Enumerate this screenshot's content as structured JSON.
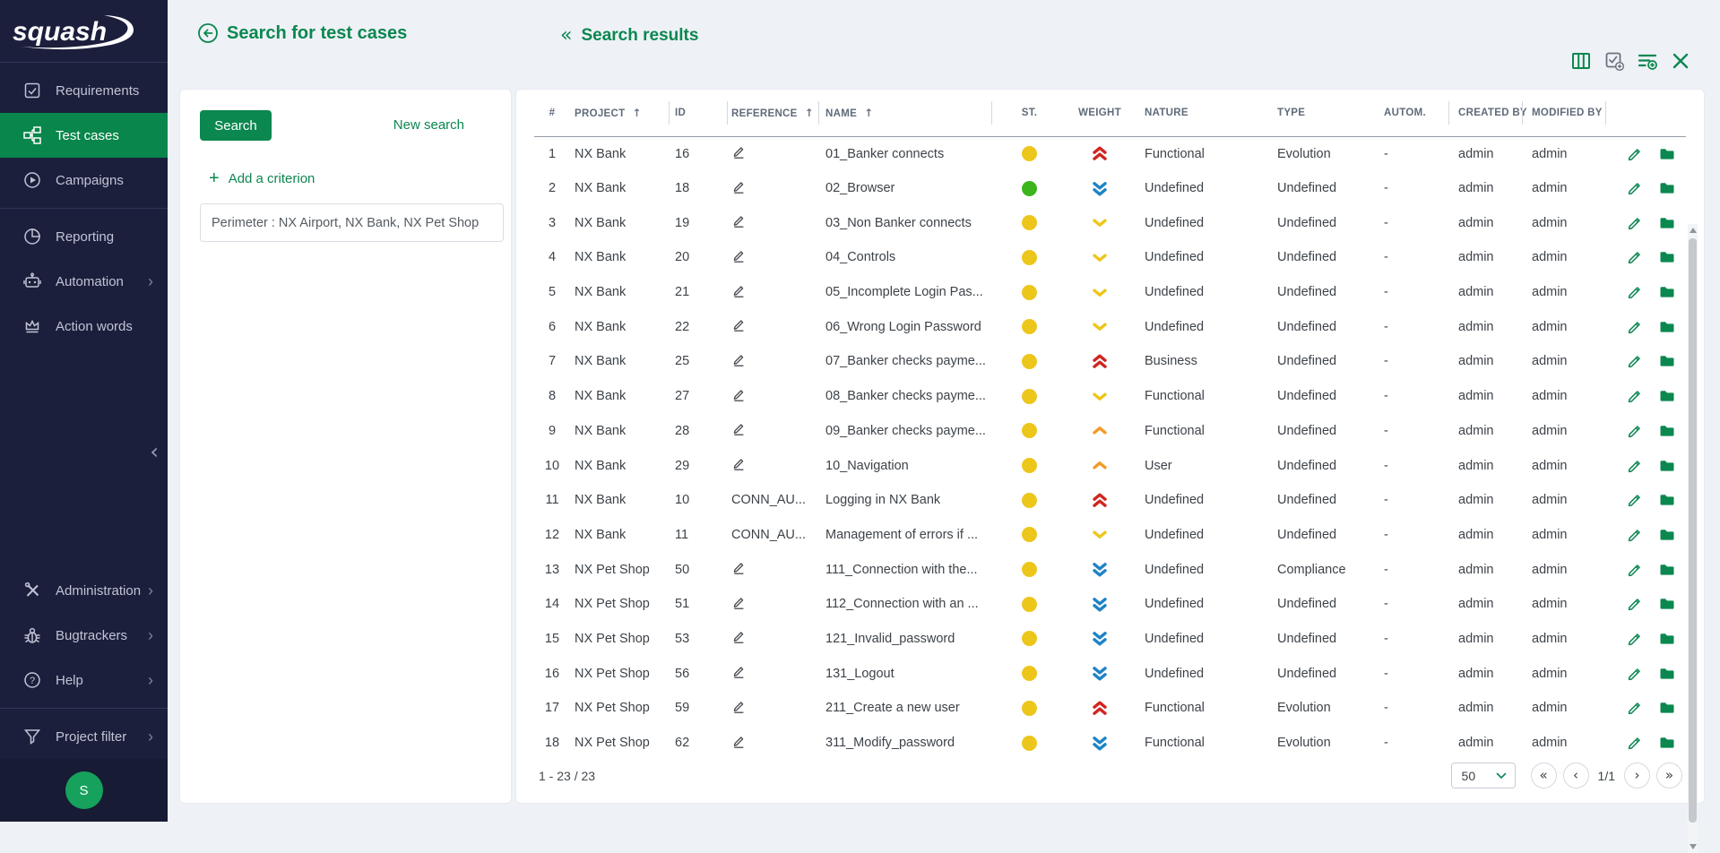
{
  "colors": {
    "accent": "#0b8750",
    "sidebar_bg": "#1b1f3c",
    "active_item_bg": "#09864b",
    "avatar_bg": "#16a15c",
    "status": {
      "yellow": "#edc61c",
      "green": "#3cb51c"
    },
    "weight": {
      "very-high": "#d02620",
      "high": "#f09b28",
      "low": "#edc61c",
      "very-low": "#1e83c5"
    }
  },
  "sidebar": {
    "logo": "squash",
    "items": [
      {
        "label": "Requirements",
        "icon": "checkbox-icon"
      },
      {
        "label": "Test cases",
        "icon": "tree-icon"
      },
      {
        "label": "Campaigns",
        "icon": "play-circle-icon"
      },
      {
        "label": "Reporting",
        "icon": "pie-icon"
      },
      {
        "label": "Automation",
        "icon": "robot-icon"
      },
      {
        "label": "Action words",
        "icon": "crown-icon"
      }
    ],
    "bottom_items": [
      {
        "label": "Administration",
        "icon": "tools-icon"
      },
      {
        "label": "Bugtrackers",
        "icon": "bug-icon"
      },
      {
        "label": "Help",
        "icon": "help-icon"
      },
      {
        "label": "Project filter",
        "icon": "funnel-icon"
      }
    ],
    "avatar": "S"
  },
  "header": {
    "title": "Search for test cases",
    "results_title": "Search results",
    "toolbar_icons": [
      "columns-icon",
      "add-verification-icon",
      "add-filter-icon",
      "close-icon"
    ]
  },
  "search_panel": {
    "search_button": "Search",
    "new_search_link": "New search",
    "add_criterion": "Add a criterion",
    "perimeter_chip": "Perimeter : NX Airport, NX Bank, NX Pet Shop"
  },
  "table": {
    "columns": [
      "#",
      "PROJECT",
      "ID",
      "REFERENCE",
      "NAME",
      "ST.",
      "WEIGHT",
      "NATURE",
      "TYPE",
      "AUTOM.",
      "CREATED BY",
      "MODIFIED BY"
    ],
    "sorted_columns": [
      "PROJECT",
      "REFERENCE",
      "NAME"
    ],
    "rows": [
      {
        "num": 1,
        "project": "NX Bank",
        "id": 16,
        "reference": "",
        "name": "01_Banker connects",
        "status": "yellow",
        "weight": "very-high",
        "nature": "Functional",
        "type": "Evolution",
        "autom": "-",
        "created_by": "admin",
        "modified_by": "admin"
      },
      {
        "num": 2,
        "project": "NX Bank",
        "id": 18,
        "reference": "",
        "name": "02_Browser",
        "status": "green",
        "weight": "very-low",
        "nature": "Undefined",
        "type": "Undefined",
        "autom": "-",
        "created_by": "admin",
        "modified_by": "admin"
      },
      {
        "num": 3,
        "project": "NX Bank",
        "id": 19,
        "reference": "",
        "name": "03_Non Banker connects",
        "status": "yellow",
        "weight": "low",
        "nature": "Undefined",
        "type": "Undefined",
        "autom": "-",
        "created_by": "admin",
        "modified_by": "admin"
      },
      {
        "num": 4,
        "project": "NX Bank",
        "id": 20,
        "reference": "",
        "name": "04_Controls",
        "status": "yellow",
        "weight": "low",
        "nature": "Undefined",
        "type": "Undefined",
        "autom": "-",
        "created_by": "admin",
        "modified_by": "admin"
      },
      {
        "num": 5,
        "project": "NX Bank",
        "id": 21,
        "reference": "",
        "name": "05_Incomplete Login Pas...",
        "status": "yellow",
        "weight": "low",
        "nature": "Undefined",
        "type": "Undefined",
        "autom": "-",
        "created_by": "admin",
        "modified_by": "admin"
      },
      {
        "num": 6,
        "project": "NX Bank",
        "id": 22,
        "reference": "",
        "name": "06_Wrong Login Password",
        "status": "yellow",
        "weight": "low",
        "nature": "Undefined",
        "type": "Undefined",
        "autom": "-",
        "created_by": "admin",
        "modified_by": "admin"
      },
      {
        "num": 7,
        "project": "NX Bank",
        "id": 25,
        "reference": "",
        "name": "07_Banker checks payme...",
        "status": "yellow",
        "weight": "very-high",
        "nature": "Business",
        "type": "Undefined",
        "autom": "-",
        "created_by": "admin",
        "modified_by": "admin"
      },
      {
        "num": 8,
        "project": "NX Bank",
        "id": 27,
        "reference": "",
        "name": "08_Banker checks payme...",
        "status": "yellow",
        "weight": "low",
        "nature": "Functional",
        "type": "Undefined",
        "autom": "-",
        "created_by": "admin",
        "modified_by": "admin"
      },
      {
        "num": 9,
        "project": "NX Bank",
        "id": 28,
        "reference": "",
        "name": "09_Banker checks payme...",
        "status": "yellow",
        "weight": "high",
        "nature": "Functional",
        "type": "Undefined",
        "autom": "-",
        "created_by": "admin",
        "modified_by": "admin"
      },
      {
        "num": 10,
        "project": "NX Bank",
        "id": 29,
        "reference": "",
        "name": "10_Navigation",
        "status": "yellow",
        "weight": "high",
        "nature": "User",
        "type": "Undefined",
        "autom": "-",
        "created_by": "admin",
        "modified_by": "admin"
      },
      {
        "num": 11,
        "project": "NX Bank",
        "id": 10,
        "reference": "CONN_AU...",
        "name": "Logging in NX Bank",
        "status": "yellow",
        "weight": "very-high",
        "nature": "Undefined",
        "type": "Undefined",
        "autom": "-",
        "created_by": "admin",
        "modified_by": "admin"
      },
      {
        "num": 12,
        "project": "NX Bank",
        "id": 11,
        "reference": "CONN_AU...",
        "name": "Management of errors if ...",
        "status": "yellow",
        "weight": "low",
        "nature": "Undefined",
        "type": "Undefined",
        "autom": "-",
        "created_by": "admin",
        "modified_by": "admin"
      },
      {
        "num": 13,
        "project": "NX Pet Shop",
        "id": 50,
        "reference": "",
        "name": "111_Connection with the...",
        "status": "yellow",
        "weight": "very-low",
        "nature": "Undefined",
        "type": "Compliance",
        "autom": "-",
        "created_by": "admin",
        "modified_by": "admin"
      },
      {
        "num": 14,
        "project": "NX Pet Shop",
        "id": 51,
        "reference": "",
        "name": "112_Connection with an ...",
        "status": "yellow",
        "weight": "very-low",
        "nature": "Undefined",
        "type": "Undefined",
        "autom": "-",
        "created_by": "admin",
        "modified_by": "admin"
      },
      {
        "num": 15,
        "project": "NX Pet Shop",
        "id": 53,
        "reference": "",
        "name": "121_Invalid_password",
        "status": "yellow",
        "weight": "very-low",
        "nature": "Undefined",
        "type": "Undefined",
        "autom": "-",
        "created_by": "admin",
        "modified_by": "admin"
      },
      {
        "num": 16,
        "project": "NX Pet Shop",
        "id": 56,
        "reference": "",
        "name": "131_Logout",
        "status": "yellow",
        "weight": "very-low",
        "nature": "Undefined",
        "type": "Undefined",
        "autom": "-",
        "created_by": "admin",
        "modified_by": "admin"
      },
      {
        "num": 17,
        "project": "NX Pet Shop",
        "id": 59,
        "reference": "",
        "name": "211_Create a new user",
        "status": "yellow",
        "weight": "very-high",
        "nature": "Functional",
        "type": "Evolution",
        "autom": "-",
        "created_by": "admin",
        "modified_by": "admin"
      },
      {
        "num": 18,
        "project": "NX Pet Shop",
        "id": 62,
        "reference": "",
        "name": "311_Modify_password",
        "status": "yellow",
        "weight": "very-low",
        "nature": "Functional",
        "type": "Evolution",
        "autom": "-",
        "created_by": "admin",
        "modified_by": "admin"
      }
    ]
  },
  "footer": {
    "range": "1 - 23 / 23",
    "page_size": "50",
    "page_indicator": "1/1",
    "first_label": "«",
    "prev_label": "‹",
    "next_label": "›",
    "last_label": "»"
  }
}
